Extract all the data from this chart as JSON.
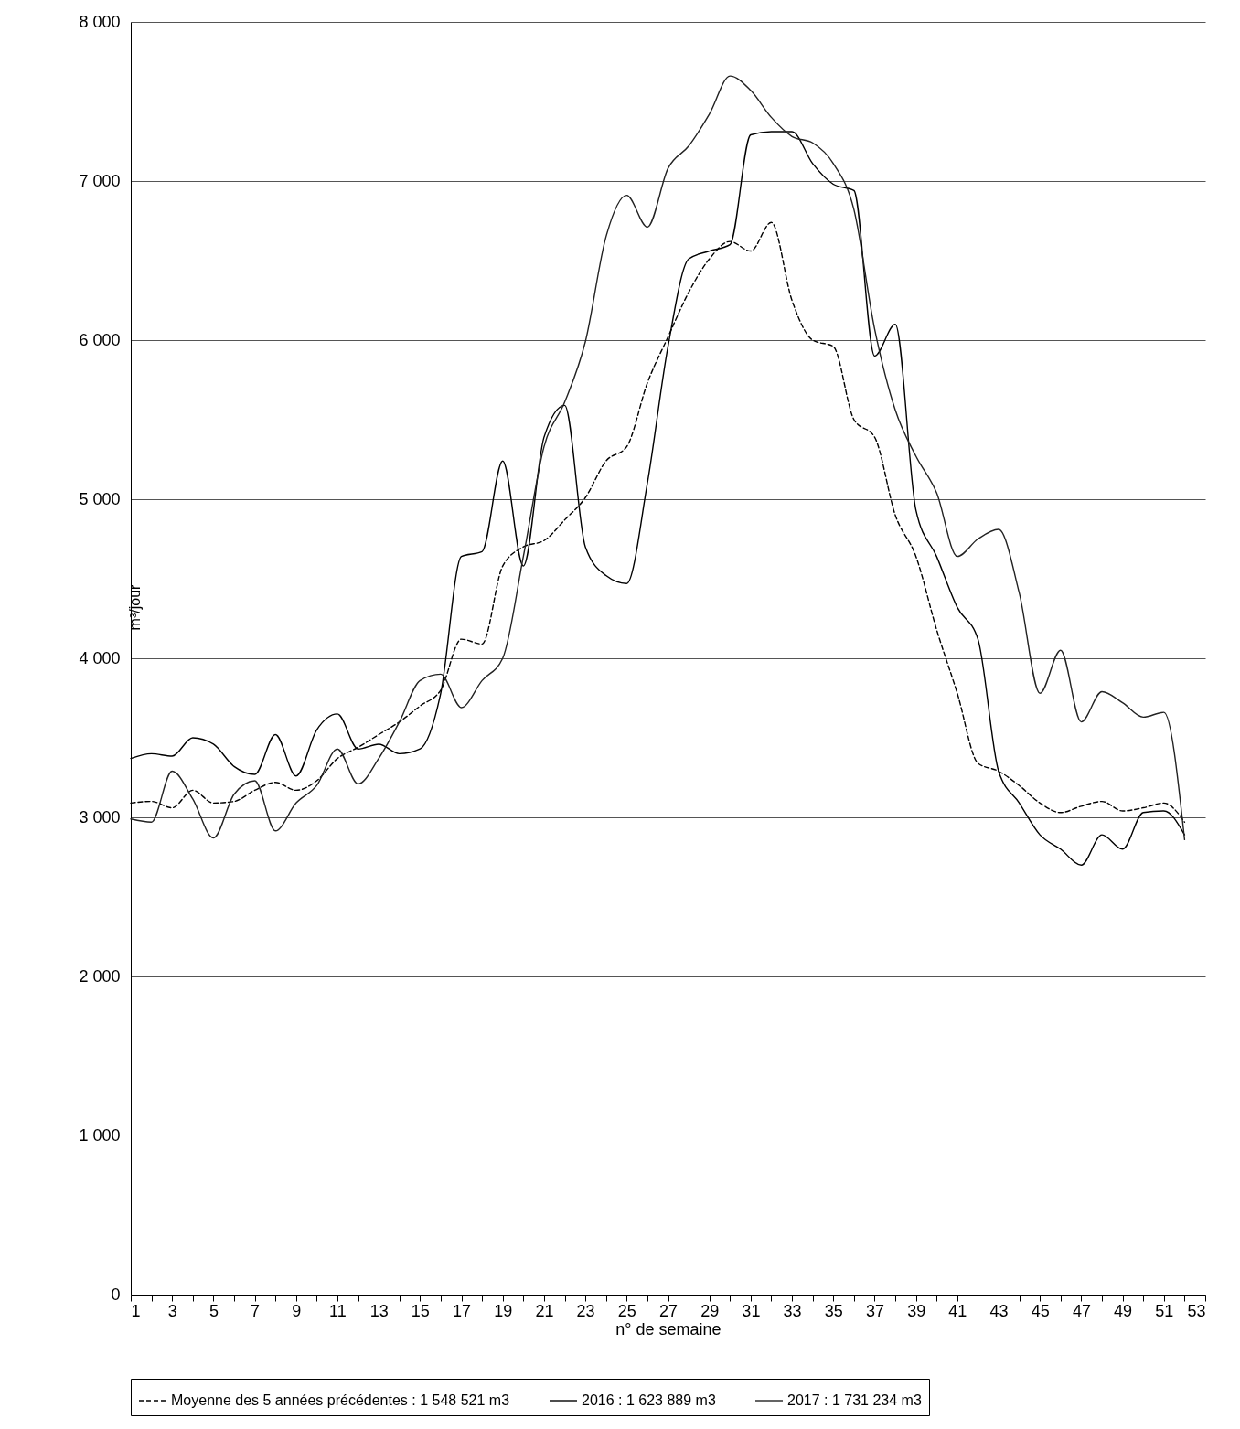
{
  "chart_data": {
    "type": "line",
    "xlabel": "n° de semaine",
    "ylabel": "m³/jour",
    "x": [
      1,
      2,
      3,
      4,
      5,
      6,
      7,
      8,
      9,
      10,
      11,
      12,
      13,
      14,
      15,
      16,
      17,
      18,
      19,
      20,
      21,
      22,
      23,
      24,
      25,
      26,
      27,
      28,
      29,
      30,
      31,
      32,
      33,
      34,
      35,
      36,
      37,
      38,
      39,
      40,
      41,
      42,
      43,
      44,
      45,
      46,
      47,
      48,
      49,
      50,
      51,
      52
    ],
    "xlim": [
      1,
      53
    ],
    "xticks": [
      1,
      {
        "value": 2,
        "label": null
      },
      3,
      {
        "value": 4,
        "label": null
      },
      5,
      {
        "value": 6,
        "label": null
      },
      7,
      {
        "value": 8,
        "label": null
      },
      9,
      {
        "value": 10,
        "label": null
      },
      11,
      {
        "value": 12,
        "label": null
      },
      13,
      {
        "value": 14,
        "label": null
      },
      15,
      {
        "value": 16,
        "label": null
      },
      17,
      {
        "value": 18,
        "label": null
      },
      19,
      {
        "value": 20,
        "label": null
      },
      21,
      {
        "value": 22,
        "label": null
      },
      23,
      {
        "value": 24,
        "label": null
      },
      25,
      {
        "value": 26,
        "label": null
      },
      27,
      {
        "value": 28,
        "label": null
      },
      29,
      {
        "value": 30,
        "label": null
      },
      31,
      {
        "value": 32,
        "label": null
      },
      33,
      {
        "value": 34,
        "label": null
      },
      35,
      {
        "value": 36,
        "label": null
      },
      37,
      {
        "value": 38,
        "label": null
      },
      39,
      {
        "value": 40,
        "label": null
      },
      41,
      {
        "value": 42,
        "label": null
      },
      43,
      {
        "value": 44,
        "label": null
      },
      45,
      {
        "value": 46,
        "label": null
      },
      47,
      {
        "value": 48,
        "label": null
      },
      49,
      {
        "value": 50,
        "label": null
      },
      51,
      {
        "value": 52,
        "label": null
      },
      53
    ],
    "ylim": [
      0,
      8000
    ],
    "yticks": [
      0,
      {
        "value": 1000,
        "label": "1 000"
      },
      {
        "value": 2000,
        "label": "2 000"
      },
      {
        "value": 3000,
        "label": "3 000"
      },
      {
        "value": 4000,
        "label": "4 000"
      },
      {
        "value": 5000,
        "label": "5 000"
      },
      {
        "value": 6000,
        "label": "6 000"
      },
      {
        "value": 7000,
        "label": "7 000"
      },
      {
        "value": 8000,
        "label": "8 000"
      }
    ],
    "grid": "y",
    "legend": "bottom",
    "marker": "none",
    "series": [
      {
        "name": "Moyenne des 5 années précédentes : 1 548 521 m3",
        "color": "#000000",
        "line_style": "dashed",
        "values": [
          3090,
          3100,
          3060,
          3170,
          3090,
          3100,
          3170,
          3220,
          3170,
          3230,
          3370,
          3440,
          3520,
          3600,
          3700,
          3800,
          4120,
          4090,
          4580,
          4700,
          4740,
          4870,
          5010,
          5240,
          5330,
          5730,
          6020,
          6300,
          6510,
          6620,
          6560,
          6740,
          6250,
          6000,
          5960,
          5500,
          5390,
          4900,
          4640,
          4180,
          3780,
          3340,
          3290,
          3200,
          3090,
          3030,
          3070,
          3100,
          3040,
          3060,
          3090,
          2970
        ]
      },
      {
        "name": "2016 : 1 623 889 m3",
        "color": "#000000",
        "line_style": "solid",
        "values": [
          3370,
          3400,
          3385,
          3500,
          3460,
          3320,
          3270,
          3520,
          3260,
          3550,
          3650,
          3430,
          3460,
          3400,
          3430,
          3780,
          4640,
          4670,
          5240,
          4580,
          5390,
          5590,
          4700,
          4520,
          4470,
          5100,
          5960,
          6510,
          6560,
          6600,
          7290,
          7310,
          7310,
          7110,
          6980,
          6940,
          5900,
          6100,
          4930,
          4640,
          4320,
          4120,
          3290,
          3090,
          2890,
          2800,
          2700,
          2890,
          2800,
          3030,
          3040,
          2890
        ]
      },
      {
        "name": "2017 : 1 731 234 m3",
        "color": "#222222",
        "line_style": "solid",
        "values": [
          2990,
          2970,
          3290,
          3115,
          2870,
          3145,
          3230,
          2915,
          3090,
          3200,
          3430,
          3210,
          3370,
          3600,
          3860,
          3900,
          3690,
          3860,
          4000,
          4640,
          5330,
          5610,
          5990,
          6650,
          6910,
          6710,
          7080,
          7220,
          7420,
          7660,
          7570,
          7400,
          7280,
          7240,
          7110,
          6820,
          6070,
          5560,
          5270,
          5040,
          4640,
          4750,
          4810,
          4410,
          3780,
          4050,
          3600,
          3790,
          3720,
          3630,
          3660,
          2860
        ]
      }
    ]
  }
}
